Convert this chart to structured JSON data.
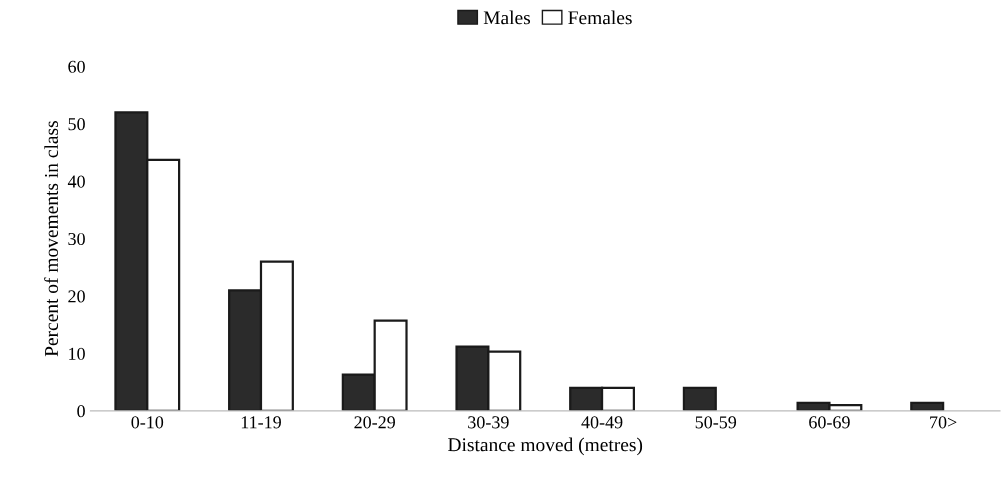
{
  "chart_data": {
    "type": "bar",
    "xlabel": "Distance moved (metres)",
    "ylabel": "Percent of movements in class",
    "categories": [
      "0-10",
      "11-19",
      "20-29",
      "30-39",
      "40-49",
      "50-59",
      "60-69",
      "70>"
    ],
    "series": [
      {
        "name": "Males",
        "color": "#2b2b2b",
        "values": [
          52,
          21,
          6.3,
          11.2,
          4,
          4,
          1.4,
          1.4
        ]
      },
      {
        "name": "Females",
        "color": "#ffffff",
        "values": [
          43.7,
          26,
          15.7,
          10.3,
          4,
          null,
          1,
          null
        ]
      }
    ],
    "ylim": [
      0,
      60
    ],
    "yticks": [
      0,
      10,
      20,
      30,
      40,
      50,
      60
    ],
    "grid": false,
    "legend": "top"
  }
}
